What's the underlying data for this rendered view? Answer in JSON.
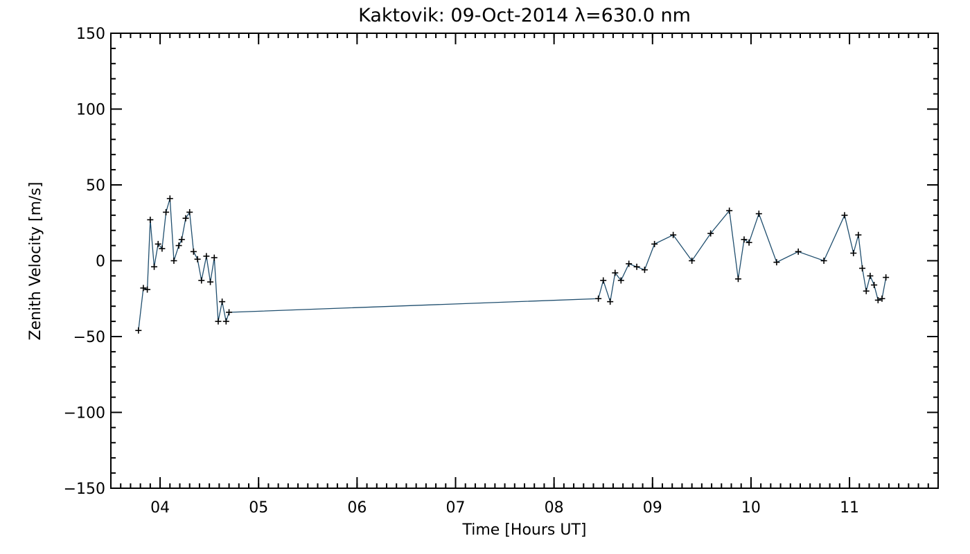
{
  "chart_data": {
    "type": "line",
    "title": "Kaktovik: 09-Oct-2014 λ=630.0 nm",
    "xlabel": "Time [Hours UT]",
    "ylabel": "Zenith Velocity [m/s]",
    "xlim": [
      3.5,
      11.9
    ],
    "ylim": [
      -150,
      150
    ],
    "xticks": [
      4,
      5,
      6,
      7,
      8,
      9,
      10,
      11
    ],
    "xtick_labels": [
      "04",
      "05",
      "06",
      "07",
      "08",
      "09",
      "10",
      "11"
    ],
    "yticks": [
      -150,
      -100,
      -50,
      0,
      50,
      100,
      150
    ],
    "ytick_labels": [
      "−150",
      "−100",
      "−50",
      "0",
      "50",
      "100",
      "150"
    ],
    "x_minor_step": 0.1,
    "y_minor_step": 10,
    "grid": false,
    "line_color": "#1f4e6e",
    "marker": "+",
    "series": [
      {
        "x": [
          3.78,
          3.83,
          3.87,
          3.9,
          3.94,
          3.98,
          4.02,
          4.06,
          4.1,
          4.14,
          4.19,
          4.22,
          4.26,
          4.3,
          4.34,
          4.38,
          4.42,
          4.47,
          4.51,
          4.55,
          4.59,
          4.63,
          4.67,
          4.7,
          8.45,
          8.5,
          8.57,
          8.62,
          8.68,
          8.76,
          8.84,
          8.92,
          9.02,
          9.21,
          9.4,
          9.59,
          9.78,
          9.87,
          9.93,
          9.98,
          10.08,
          10.26,
          10.48,
          10.74,
          10.95,
          11.04,
          11.09,
          11.13,
          11.17,
          11.21,
          11.25,
          11.29,
          11.33,
          11.37
        ],
        "y": [
          -46,
          -18,
          -19,
          27,
          -4,
          11,
          8,
          32,
          41,
          0,
          10,
          14,
          28,
          32,
          6,
          1,
          -13,
          3,
          -14,
          2,
          -40,
          -27,
          -40,
          -34,
          -25,
          -13,
          -27,
          -8,
          -13,
          -2,
          -4,
          -6,
          11,
          17,
          0,
          18,
          33,
          -12,
          14,
          12,
          31,
          -1,
          6,
          0,
          30,
          5,
          17,
          -5,
          -20,
          -10,
          -16,
          -26,
          -25,
          -11
        ]
      }
    ]
  }
}
